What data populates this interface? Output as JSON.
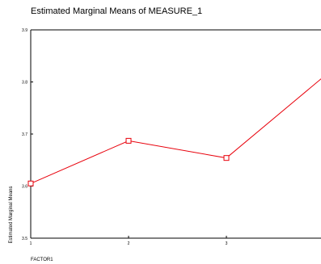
{
  "chart_data": {
    "type": "line",
    "title": "Estimated Marginal Means of MEASURE_1",
    "xlabel": "FACTOR1",
    "ylabel": "Estimated Marginal Means",
    "categories": [
      "1",
      "2",
      "3",
      "4"
    ],
    "x_tick_labels": [
      "1",
      "2",
      "3",
      ""
    ],
    "series": [
      {
        "values": [
          3.605,
          3.687,
          3.654,
          3.811
        ],
        "color": "#e8000b",
        "marker": "square-open"
      }
    ],
    "ylim": [
      3.5,
      3.9
    ],
    "yticks": [
      3.5,
      3.6,
      3.7,
      3.8,
      3.9
    ],
    "ytick_labels": [
      "3.5",
      "3.6",
      "3.7",
      "3.8",
      "3.9"
    ],
    "grid": false,
    "legend": "none"
  }
}
